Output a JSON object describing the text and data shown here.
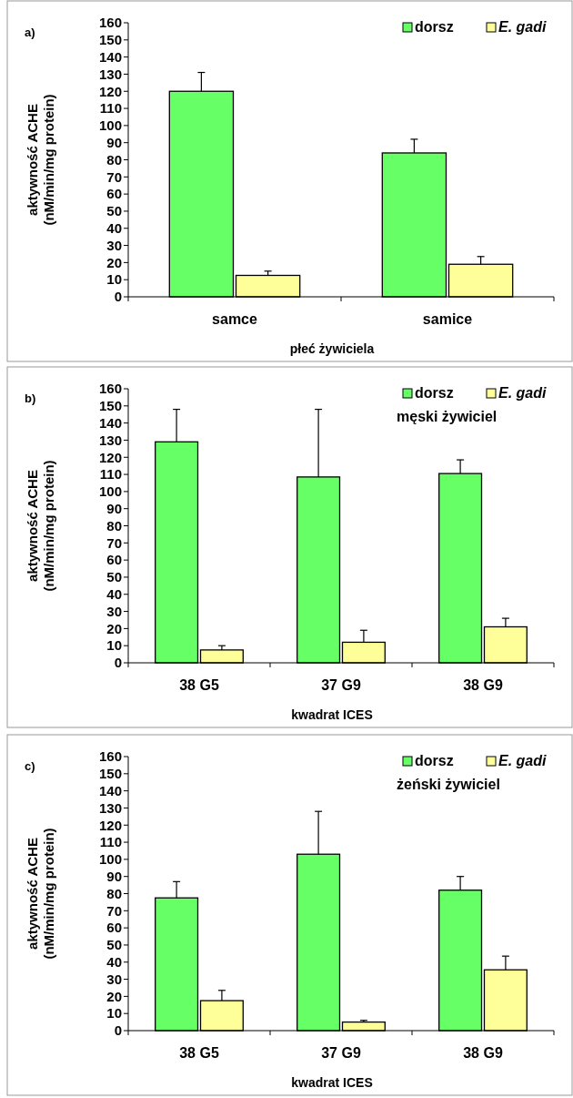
{
  "chart_data": [
    {
      "type": "bar",
      "annotations": [
        "a)"
      ],
      "xlabel": "płeć żywiciela",
      "ylabel": "aktywność ACHE\n(nM/min/mg protein)",
      "categories": [
        "samce",
        "samice"
      ],
      "series": [
        {
          "name": "dorsz",
          "color": "#66ff66",
          "values": [
            120,
            84
          ],
          "errors": [
            [
              120,
              131
            ],
            [
              84,
              92
            ]
          ]
        },
        {
          "name": "E. gadi",
          "color": "#ffff99",
          "values": [
            12.5,
            19
          ],
          "errors": [
            [
              12.5,
              15
            ],
            [
              19,
              23.5
            ]
          ]
        }
      ],
      "ylim": [
        0,
        160
      ],
      "yticks": [
        0,
        10,
        20,
        30,
        40,
        50,
        60,
        70,
        80,
        90,
        100,
        110,
        120,
        130,
        140,
        150,
        160
      ],
      "legend": "top right",
      "grid": false
    },
    {
      "type": "bar",
      "annotations": [
        "b)"
      ],
      "subtitle": "męski żywiciel",
      "xlabel": "kwadrat ICES",
      "ylabel": "aktywność ACHE\n(nM/min/mg protein)",
      "categories": [
        "38 G5",
        "37 G9",
        "38 G9"
      ],
      "series": [
        {
          "name": "dorsz",
          "color": "#66ff66",
          "values": [
            129,
            108.5,
            110.5
          ],
          "errors": [
            [
              129,
              148
            ],
            [
              108.5,
              148
            ],
            [
              110.5,
              118.5
            ]
          ]
        },
        {
          "name": "E. gadi",
          "color": "#ffff99",
          "values": [
            7.5,
            12,
            21
          ],
          "errors": [
            [
              7.5,
              10
            ],
            [
              12,
              19
            ],
            [
              21,
              26
            ]
          ]
        }
      ],
      "ylim": [
        0,
        160
      ],
      "yticks": [
        0,
        10,
        20,
        30,
        40,
        50,
        60,
        70,
        80,
        90,
        100,
        110,
        120,
        130,
        140,
        150,
        160
      ],
      "legend": "top right",
      "grid": false
    },
    {
      "type": "bar",
      "annotations": [
        "c)"
      ],
      "subtitle": "żeński żywiciel",
      "xlabel": "kwadrat ICES",
      "ylabel": "aktywność ACHE\n(nM/min/mg protein)",
      "categories": [
        "38 G5",
        "37 G9",
        "38 G9"
      ],
      "series": [
        {
          "name": "dorsz",
          "color": "#66ff66",
          "values": [
            77.5,
            103,
            82
          ],
          "errors": [
            [
              77.5,
              87
            ],
            [
              103,
              128
            ],
            [
              82,
              90
            ]
          ]
        },
        {
          "name": "E. gadi",
          "color": "#ffff99",
          "values": [
            17.5,
            5,
            35.5
          ],
          "errors": [
            [
              17.5,
              23.5
            ],
            [
              5,
              6
            ],
            [
              35.5,
              43.5
            ]
          ]
        }
      ],
      "ylim": [
        0,
        160
      ],
      "yticks": [
        0,
        10,
        20,
        30,
        40,
        50,
        60,
        70,
        80,
        90,
        100,
        110,
        120,
        130,
        140,
        150,
        160
      ],
      "legend": "top right",
      "grid": false
    }
  ]
}
